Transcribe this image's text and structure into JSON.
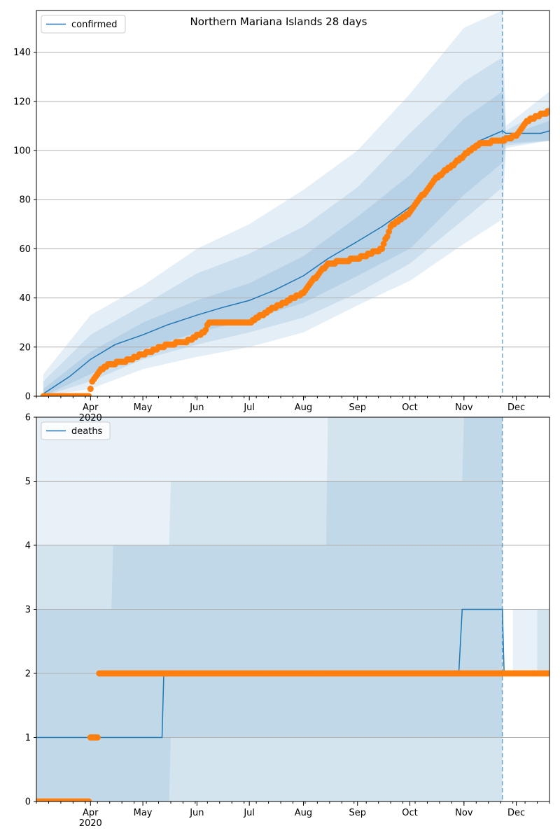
{
  "chart_data": [
    {
      "type": "line",
      "title": "Northern Mariana Islands 28 days",
      "xlabel": "",
      "ylabel": "",
      "ylim": [
        0,
        157
      ],
      "y_ticks": [
        0,
        20,
        40,
        60,
        80,
        100,
        120,
        140
      ],
      "x_ticks": [
        "Apr\n2020",
        "May",
        "Jun",
        "Jul",
        "Aug",
        "Sep",
        "Oct",
        "Nov",
        "Dec"
      ],
      "grid": "horizontal",
      "legend_position": "top-left",
      "forecast_start": "Nov 23",
      "legend": [
        "confirmed"
      ],
      "series": [
        {
          "name": "confirmed",
          "style": "line",
          "color": "#1f77b4",
          "x": [
            "Mar 5",
            "Mar 20",
            "Apr 1",
            "Apr 15",
            "May 1",
            "May 15",
            "Jun 1",
            "Jun 15",
            "Jul 1",
            "Jul 15",
            "Aug 1",
            "Aug 15",
            "Sep 1",
            "Sep 15",
            "Oct 1",
            "Oct 15",
            "Nov 1",
            "Nov 10",
            "Nov 23",
            "Nov 25",
            "Dec 15",
            "Dec 20"
          ],
          "y": [
            1,
            8,
            15,
            21,
            25,
            29,
            33,
            36,
            39,
            43,
            49,
            56,
            63,
            69,
            77,
            87,
            98,
            104,
            108,
            107,
            107,
            108
          ]
        },
        {
          "style": "points",
          "color": "#ff7f0e",
          "x": [
            "Mar 5",
            "Mar 31",
            "Apr 2",
            "Apr 7",
            "Apr 12",
            "Apr 20",
            "May 15",
            "May 25",
            "Jun 5",
            "Jun 8",
            "Jul 1",
            "Jul 15",
            "Aug 1",
            "Aug 5",
            "Aug 15",
            "Sep 1",
            "Sep 15",
            "Sep 20",
            "Oct 1",
            "Oct 15",
            "Nov 1",
            "Nov 10",
            "Nov 23",
            "Dec 1",
            "Dec 7",
            "Dec 10",
            "Dec 20"
          ],
          "y": [
            0,
            0,
            6,
            11,
            13,
            14,
            21,
            22,
            26,
            30,
            30,
            36,
            42,
            46,
            54,
            56,
            60,
            69,
            75,
            88,
            98,
            103,
            104,
            106,
            112,
            113,
            116
          ]
        }
      ],
      "bands": {
        "color": "#1f77b4",
        "x": [
          "Mar 5",
          "Apr 1",
          "May 1",
          "Jun 1",
          "Jul 1",
          "Aug 1",
          "Sep 1",
          "Oct 1",
          "Nov 1",
          "Nov 23",
          "Nov 25",
          "Dec 20"
        ],
        "inner": {
          "lower": [
            0,
            9,
            19,
            26,
            31,
            38,
            49,
            60,
            82,
            95,
            103,
            104
          ],
          "upper": [
            3,
            18,
            30,
            39,
            46,
            57,
            73,
            90,
            113,
            124,
            106,
            112
          ]
        },
        "middle": {
          "lower": [
            0,
            6,
            15,
            21,
            26,
            32,
            42,
            54,
            72,
            85,
            102,
            104
          ],
          "upper": [
            6,
            25,
            37,
            50,
            58,
            69,
            85,
            107,
            128,
            138,
            108,
            118
          ]
        },
        "outer": {
          "lower": [
            0,
            3,
            11,
            16,
            20,
            26,
            37,
            47,
            62,
            72,
            101,
            104
          ],
          "upper": [
            9,
            33,
            45,
            60,
            70,
            84,
            100,
            123,
            150,
            157,
            110,
            124
          ]
        }
      }
    },
    {
      "type": "line",
      "title": "",
      "xlabel": "",
      "ylabel": "",
      "ylim": [
        0,
        6
      ],
      "y_ticks": [
        0,
        1,
        2,
        3,
        4,
        5,
        6
      ],
      "x_ticks": [
        "Apr\n2020",
        "May",
        "Jun",
        "Jul",
        "Aug",
        "Sep",
        "Oct",
        "Nov",
        "Dec"
      ],
      "grid": "horizontal",
      "legend_position": "top-left",
      "forecast_start": "Nov 23",
      "legend": [
        "deaths"
      ],
      "series": [
        {
          "name": "deaths",
          "style": "step",
          "color": "#1f77b4",
          "x": [
            "Mar 1",
            "May 12",
            "May 13",
            "Oct 29",
            "Oct 31",
            "Nov 23",
            "Nov 24",
            "Dec 20"
          ],
          "y": [
            1,
            1,
            2,
            2,
            3,
            3,
            2,
            2
          ]
        },
        {
          "style": "points",
          "color": "#ff7f0e",
          "x": [
            "Mar 1",
            "Mar 31",
            "Apr 1",
            "Apr 5",
            "Apr 6",
            "Dec 20"
          ],
          "y": [
            0,
            0,
            1,
            1,
            2,
            2
          ]
        }
      ],
      "regions": {
        "color": "#1f77b4",
        "span_a": {
          "x": [
            "Mar 1",
            "Apr 13",
            "Apr 14",
            "Aug 14",
            "Aug 15",
            "Nov 23"
          ],
          "lower": [
            0,
            0,
            0,
            0,
            0,
            0
          ],
          "upper": [
            3,
            3,
            4,
            4,
            6,
            6
          ]
        },
        "span_b": {
          "x": [
            "Mar 1",
            "May 16",
            "May 17",
            "Oct 31",
            "Nov 1",
            "Nov 23"
          ],
          "lower": [
            0,
            0,
            1,
            1,
            1,
            1
          ],
          "upper": [
            4,
            4,
            5,
            5,
            6,
            6
          ]
        },
        "span_c": {
          "x": [
            "Mar 1",
            "Nov 23"
          ],
          "lower": [
            0,
            0
          ],
          "upper": [
            6,
            6
          ]
        },
        "after_a": {
          "x": [
            "Nov 29",
            "Dec 20"
          ],
          "lower": [
            2,
            2
          ],
          "upper": [
            3,
            3
          ]
        },
        "after_b": {
          "x": [
            "Dec 13",
            "Dec 20"
          ],
          "lower": [
            2,
            2
          ],
          "upper": [
            3,
            3
          ]
        }
      }
    }
  ]
}
